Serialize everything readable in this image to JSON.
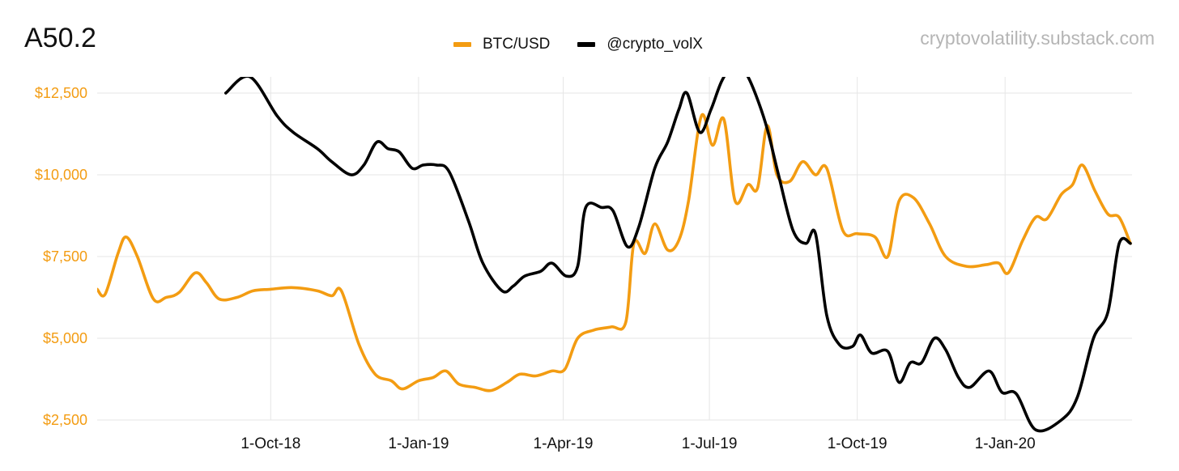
{
  "title": "A50.2",
  "watermark": "cryptovolatility.substack.com",
  "colors": {
    "btc": "#F39C12",
    "vol": "#000000",
    "grid": "#e6e6e6",
    "axis_text": "#F39C12"
  },
  "chart_data": {
    "type": "line",
    "title": "A50.2",
    "legend": {
      "placement": "top-center",
      "entries": [
        "BTC/USD",
        "@crypto_volX"
      ]
    },
    "grid": true,
    "xlabel": "",
    "ylabel": "",
    "x_tick_labels": [
      "1-Oct-18",
      "1-Jan-19",
      "1-Apr-19",
      "1-Jul-19",
      "1-Oct-19",
      "1-Jan-20"
    ],
    "x_range": [
      "2018-06-15",
      "2020-03-20"
    ],
    "y_ticks": [
      2500,
      5000,
      7500,
      10000,
      12500
    ],
    "y_tick_labels": [
      "$2,500",
      "$5,000",
      "$7,500",
      "$10,000",
      "$12,500"
    ],
    "ylim": [
      2500,
      12500
    ],
    "series": [
      {
        "name": "BTC/USD",
        "color": "#F39C12",
        "points": [
          [
            "2018-06-15",
            6500
          ],
          [
            "2018-06-20",
            6350
          ],
          [
            "2018-06-28",
            7600
          ],
          [
            "2018-07-03",
            8100
          ],
          [
            "2018-07-10",
            7500
          ],
          [
            "2018-07-20",
            6200
          ],
          [
            "2018-07-28",
            6250
          ],
          [
            "2018-08-05",
            6400
          ],
          [
            "2018-08-15",
            7000
          ],
          [
            "2018-08-22",
            6700
          ],
          [
            "2018-08-30",
            6200
          ],
          [
            "2018-09-10",
            6250
          ],
          [
            "2018-09-20",
            6450
          ],
          [
            "2018-10-01",
            6500
          ],
          [
            "2018-10-15",
            6550
          ],
          [
            "2018-10-30",
            6450
          ],
          [
            "2018-11-08",
            6300
          ],
          [
            "2018-11-14",
            6450
          ],
          [
            "2018-11-25",
            4800
          ],
          [
            "2018-12-05",
            3900
          ],
          [
            "2018-12-15",
            3700
          ],
          [
            "2018-12-22",
            3450
          ],
          [
            "2019-01-01",
            3700
          ],
          [
            "2019-01-10",
            3800
          ],
          [
            "2019-01-18",
            4000
          ],
          [
            "2019-01-26",
            3600
          ],
          [
            "2019-02-05",
            3500
          ],
          [
            "2019-02-15",
            3400
          ],
          [
            "2019-02-25",
            3650
          ],
          [
            "2019-03-05",
            3900
          ],
          [
            "2019-03-15",
            3850
          ],
          [
            "2019-03-25",
            4000
          ],
          [
            "2019-04-02",
            4050
          ],
          [
            "2019-04-10",
            5000
          ],
          [
            "2019-04-20",
            5250
          ],
          [
            "2019-05-01",
            5350
          ],
          [
            "2019-05-10",
            5500
          ],
          [
            "2019-05-15",
            7900
          ],
          [
            "2019-05-22",
            7600
          ],
          [
            "2019-05-28",
            8500
          ],
          [
            "2019-06-05",
            7700
          ],
          [
            "2019-06-12",
            8000
          ],
          [
            "2019-06-18",
            9200
          ],
          [
            "2019-06-26",
            11800
          ],
          [
            "2019-07-03",
            10900
          ],
          [
            "2019-07-10",
            11700
          ],
          [
            "2019-07-17",
            9200
          ],
          [
            "2019-07-25",
            9700
          ],
          [
            "2019-07-31",
            9600
          ],
          [
            "2019-08-06",
            11500
          ],
          [
            "2019-08-12",
            10000
          ],
          [
            "2019-08-20",
            9800
          ],
          [
            "2019-08-28",
            10400
          ],
          [
            "2019-09-05",
            10000
          ],
          [
            "2019-09-12",
            10200
          ],
          [
            "2019-09-22",
            8300
          ],
          [
            "2019-10-01",
            8200
          ],
          [
            "2019-10-12",
            8100
          ],
          [
            "2019-10-20",
            7500
          ],
          [
            "2019-10-27",
            9200
          ],
          [
            "2019-11-05",
            9300
          ],
          [
            "2019-11-15",
            8500
          ],
          [
            "2019-11-25",
            7500
          ],
          [
            "2019-12-08",
            7200
          ],
          [
            "2019-12-20",
            7250
          ],
          [
            "2019-12-28",
            7300
          ],
          [
            "2020-01-03",
            7000
          ],
          [
            "2020-01-12",
            8000
          ],
          [
            "2020-01-20",
            8700
          ],
          [
            "2020-01-27",
            8650
          ],
          [
            "2020-02-05",
            9400
          ],
          [
            "2020-02-12",
            9700
          ],
          [
            "2020-02-18",
            10300
          ],
          [
            "2020-02-26",
            9500
          ],
          [
            "2020-03-05",
            8800
          ],
          [
            "2020-03-12",
            8700
          ],
          [
            "2020-03-19",
            7900
          ]
        ]
      },
      {
        "name": "@crypto_volX",
        "color": "#000000",
        "points": [
          [
            "2018-09-03",
            12500
          ],
          [
            "2018-09-18",
            13000
          ],
          [
            "2018-10-05",
            11800
          ],
          [
            "2018-10-15",
            11300
          ],
          [
            "2018-10-30",
            10800
          ],
          [
            "2018-11-08",
            10400
          ],
          [
            "2018-11-20",
            10000
          ],
          [
            "2018-11-28",
            10300
          ],
          [
            "2018-12-06",
            11000
          ],
          [
            "2018-12-13",
            10800
          ],
          [
            "2018-12-20",
            10700
          ],
          [
            "2018-12-28",
            10200
          ],
          [
            "2019-01-04",
            10300
          ],
          [
            "2019-01-12",
            10300
          ],
          [
            "2019-01-20",
            10100
          ],
          [
            "2019-02-01",
            8600
          ],
          [
            "2019-02-10",
            7300
          ],
          [
            "2019-02-22",
            6450
          ],
          [
            "2019-03-01",
            6600
          ],
          [
            "2019-03-08",
            6900
          ],
          [
            "2019-03-18",
            7050
          ],
          [
            "2019-03-25",
            7300
          ],
          [
            "2019-04-03",
            6900
          ],
          [
            "2019-04-10",
            7200
          ],
          [
            "2019-04-15",
            9000
          ],
          [
            "2019-04-25",
            9000
          ],
          [
            "2019-05-02",
            8900
          ],
          [
            "2019-05-11",
            7800
          ],
          [
            "2019-05-18",
            8400
          ],
          [
            "2019-05-28",
            10200
          ],
          [
            "2019-06-05",
            11000
          ],
          [
            "2019-06-12",
            12000
          ],
          [
            "2019-06-17",
            12500
          ],
          [
            "2019-06-25",
            11300
          ],
          [
            "2019-07-02",
            12000
          ],
          [
            "2019-07-09",
            12900
          ],
          [
            "2019-07-18",
            13500
          ],
          [
            "2019-07-25",
            13000
          ],
          [
            "2019-07-31",
            12300
          ],
          [
            "2019-08-06",
            11400
          ],
          [
            "2019-08-13",
            10000
          ],
          [
            "2019-08-22",
            8300
          ],
          [
            "2019-08-30",
            7900
          ],
          [
            "2019-09-05",
            8200
          ],
          [
            "2019-09-12",
            5700
          ],
          [
            "2019-09-20",
            4800
          ],
          [
            "2019-09-28",
            4750
          ],
          [
            "2019-10-03",
            5100
          ],
          [
            "2019-10-10",
            4550
          ],
          [
            "2019-10-20",
            4600
          ],
          [
            "2019-10-27",
            3650
          ],
          [
            "2019-11-03",
            4250
          ],
          [
            "2019-11-10",
            4250
          ],
          [
            "2019-11-18",
            5000
          ],
          [
            "2019-11-25",
            4650
          ],
          [
            "2019-12-03",
            3800
          ],
          [
            "2019-12-10",
            3500
          ],
          [
            "2019-12-22",
            4000
          ],
          [
            "2019-12-30",
            3350
          ],
          [
            "2020-01-08",
            3300
          ],
          [
            "2020-01-20",
            2200
          ],
          [
            "2020-02-05",
            2500
          ],
          [
            "2020-02-15",
            3200
          ],
          [
            "2020-02-25",
            5000
          ],
          [
            "2020-03-05",
            5800
          ],
          [
            "2020-03-12",
            7900
          ],
          [
            "2020-03-19",
            7900
          ]
        ]
      }
    ]
  }
}
